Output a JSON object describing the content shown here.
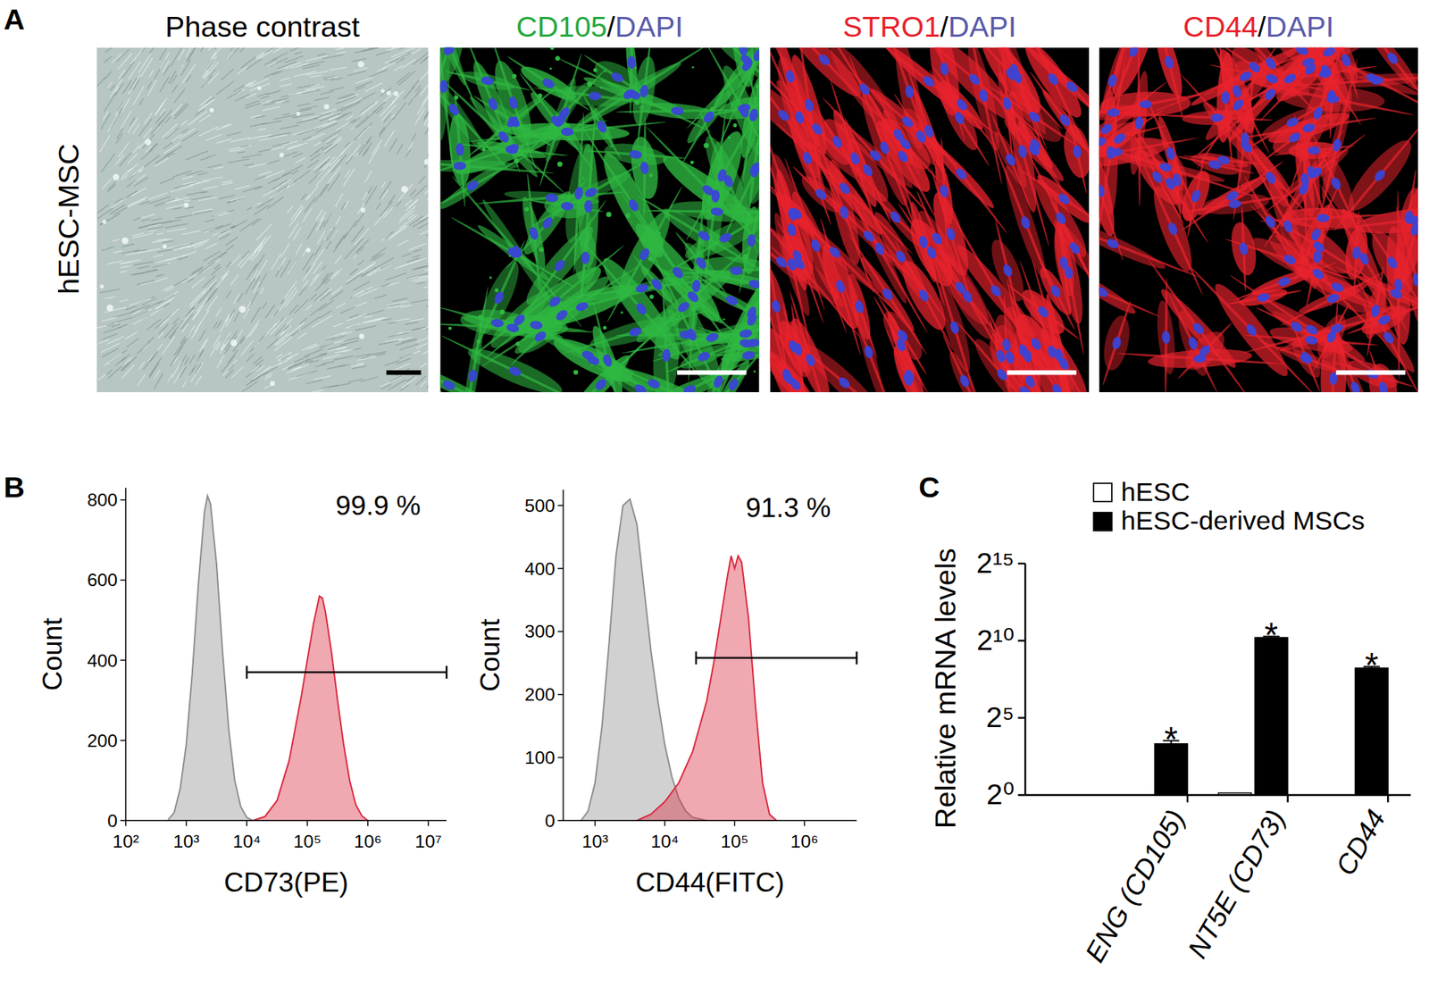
{
  "panel_labels": [
    "A",
    "B",
    "C"
  ],
  "panel_a": {
    "row_label": "hESC-MSC",
    "images": [
      {
        "type": "phase",
        "title": [
          {
            "text": "Phase contrast",
            "color": "#000000"
          }
        ]
      },
      {
        "type": "fluorescence",
        "stain_color": "#2fb842",
        "title": [
          {
            "text": "CD105",
            "color": "#22a83c"
          },
          {
            "text": "/",
            "color": "#000000"
          },
          {
            "text": "DAPI",
            "color": "#5a5aa8"
          }
        ]
      },
      {
        "type": "fluorescence",
        "stain_color": "#e8232d",
        "title": [
          {
            "text": "STRO1",
            "color": "#e8202a"
          },
          {
            "text": "/",
            "color": "#000000"
          },
          {
            "text": "DAPI",
            "color": "#5a5aa8"
          }
        ]
      },
      {
        "type": "fluorescence",
        "stain_color": "#e8232d",
        "title": [
          {
            "text": "CD44",
            "color": "#e8202a"
          },
          {
            "text": "/",
            "color": "#000000"
          },
          {
            "text": "DAPI",
            "color": "#5a5aa8"
          }
        ]
      }
    ]
  },
  "chart_data": [
    {
      "type": "area",
      "x_label": "CD73(PE)",
      "y_label": "Count",
      "log": "x",
      "xlim": [
        100,
        20000000
      ],
      "xticks": [
        {
          "value": 100,
          "label": "10²"
        },
        {
          "value": 1000,
          "label": "10³"
        },
        {
          "value": 10000,
          "label": "10⁴"
        },
        {
          "value": 100000,
          "label": "10⁵"
        },
        {
          "value": 1000000,
          "label": "10⁶"
        },
        {
          "value": 10000000,
          "label": "10⁷"
        }
      ],
      "ylim": [
        0,
        830
      ],
      "yticks": [
        0,
        200,
        400,
        600,
        800
      ],
      "series": [
        {
          "color": "#8c8c8c",
          "x": [
            501,
            631,
            794,
            1000,
            1259,
            1585,
            1995,
            2239,
            2512,
            3162,
            3981,
            5012,
            6310,
            7943,
            10000,
            12589
          ],
          "values": [
            2,
            20,
            80,
            190,
            370,
            590,
            770,
            810,
            790,
            640,
            420,
            230,
            100,
            35,
            8,
            0
          ]
        },
        {
          "color": "#d9263b",
          "x": [
            12589,
            19953,
            31623,
            50119,
            79433,
            100000,
            125893,
            158489,
            177828,
            199526,
            251189,
            316228,
            398107,
            501187,
            630957,
            794328,
            1000000
          ],
          "values": [
            0,
            10,
            50,
            150,
            310,
            400,
            490,
            560,
            555,
            520,
            420,
            300,
            190,
            100,
            40,
            12,
            0
          ]
        }
      ],
      "gate": {
        "x": [
          10000,
          20000000
        ],
        "y": 370
      },
      "annotation": "99.9 %"
    },
    {
      "type": "area",
      "x_label": "CD44(FITC)",
      "y_label": "Count",
      "log": "x",
      "xlim": [
        350,
        5600000
      ],
      "xticks": [
        {
          "value": 1000,
          "label": "10³"
        },
        {
          "value": 10000,
          "label": "10⁴"
        },
        {
          "value": 100000,
          "label": "10⁵"
        },
        {
          "value": 1000000,
          "label": "10⁶"
        }
      ],
      "ylim": [
        0,
        525
      ],
      "yticks": [
        0,
        100,
        200,
        300,
        400,
        500
      ],
      "series": [
        {
          "color": "#8c8c8c",
          "x": [
            631,
            794,
            1000,
            1259,
            1585,
            1995,
            2512,
            3162,
            3981,
            5012,
            6310,
            7943,
            10000,
            12589,
            15849,
            19953,
            25119,
            39811
          ],
          "values": [
            0,
            15,
            60,
            150,
            280,
            420,
            500,
            510,
            470,
            370,
            270,
            190,
            120,
            70,
            35,
            15,
            5,
            0
          ]
        },
        {
          "color": "#d9263b",
          "x": [
            3981,
            6310,
            10000,
            15849,
            25119,
            39811,
            50119,
            63096,
            79433,
            89125,
            100000,
            112202,
            125893,
            158489,
            199526,
            251189,
            316228,
            398107
          ],
          "values": [
            0,
            10,
            30,
            60,
            110,
            190,
            250,
            320,
            390,
            420,
            400,
            420,
            410,
            320,
            180,
            60,
            10,
            0
          ]
        }
      ],
      "gate": {
        "x": [
          28000,
          5600000
        ],
        "y": 258
      },
      "annotation": "91.3 %"
    },
    {
      "type": "bar",
      "y_label": "Relative mRNA levels",
      "log": "y",
      "legend": "top",
      "categories": [
        "ENG (CD105)",
        "NT5E (CD73)",
        "CD44"
      ],
      "ylim": [
        1,
        32768
      ],
      "yticks": [
        {
          "value": 1,
          "label": "2⁰"
        },
        {
          "value": 32,
          "label": "2⁵"
        },
        {
          "value": 1024,
          "label": "2¹⁰"
        },
        {
          "value": 32768,
          "label": "2¹⁵"
        }
      ],
      "series": [
        {
          "name": "hESC",
          "color": "#ffffff",
          "values": [
            1,
            1.1,
            1
          ]
        },
        {
          "name": "hESC-derived MSCs",
          "color": "#000000",
          "values": [
            10,
            1180,
            300
          ],
          "errors": [
            1.5,
            60,
            20
          ],
          "significance": [
            "*",
            "*",
            "*"
          ]
        }
      ]
    }
  ]
}
